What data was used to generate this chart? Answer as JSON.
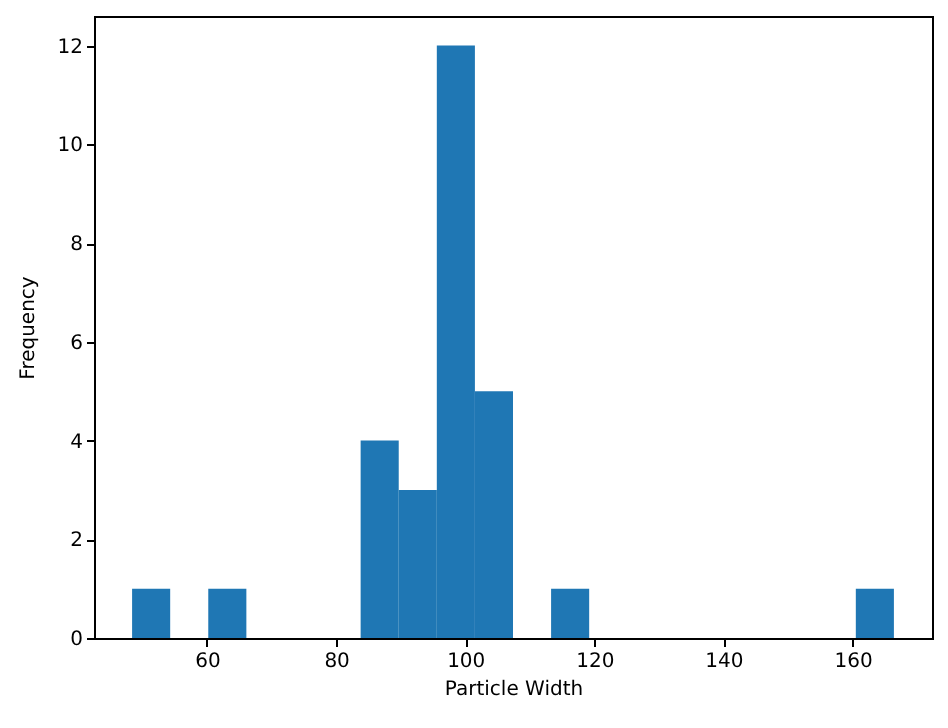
{
  "chart_data": {
    "type": "histogram",
    "xlabel": "Particle Width",
    "ylabel": "Frequency",
    "bins": [
      48.4,
      54.3,
      60.2,
      66.1,
      72.0,
      77.9,
      83.8,
      89.7,
      95.6,
      101.5,
      107.4,
      113.3,
      119.2,
      125.1,
      131.0,
      136.9,
      142.8,
      148.7,
      154.6,
      160.5,
      166.4
    ],
    "values": [
      1,
      0,
      1,
      0,
      0,
      0,
      4,
      3,
      12,
      5,
      0,
      1,
      0,
      0,
      0,
      0,
      0,
      0,
      0,
      1
    ],
    "color": "#1f77b4",
    "xlim": [
      42.5,
      172.3
    ],
    "xticks": [
      60,
      80,
      100,
      120,
      140,
      160
    ],
    "ylim": [
      0,
      12.6
    ],
    "yticks": [
      0,
      2,
      4,
      6,
      8,
      10,
      12
    ],
    "grid": false
  }
}
